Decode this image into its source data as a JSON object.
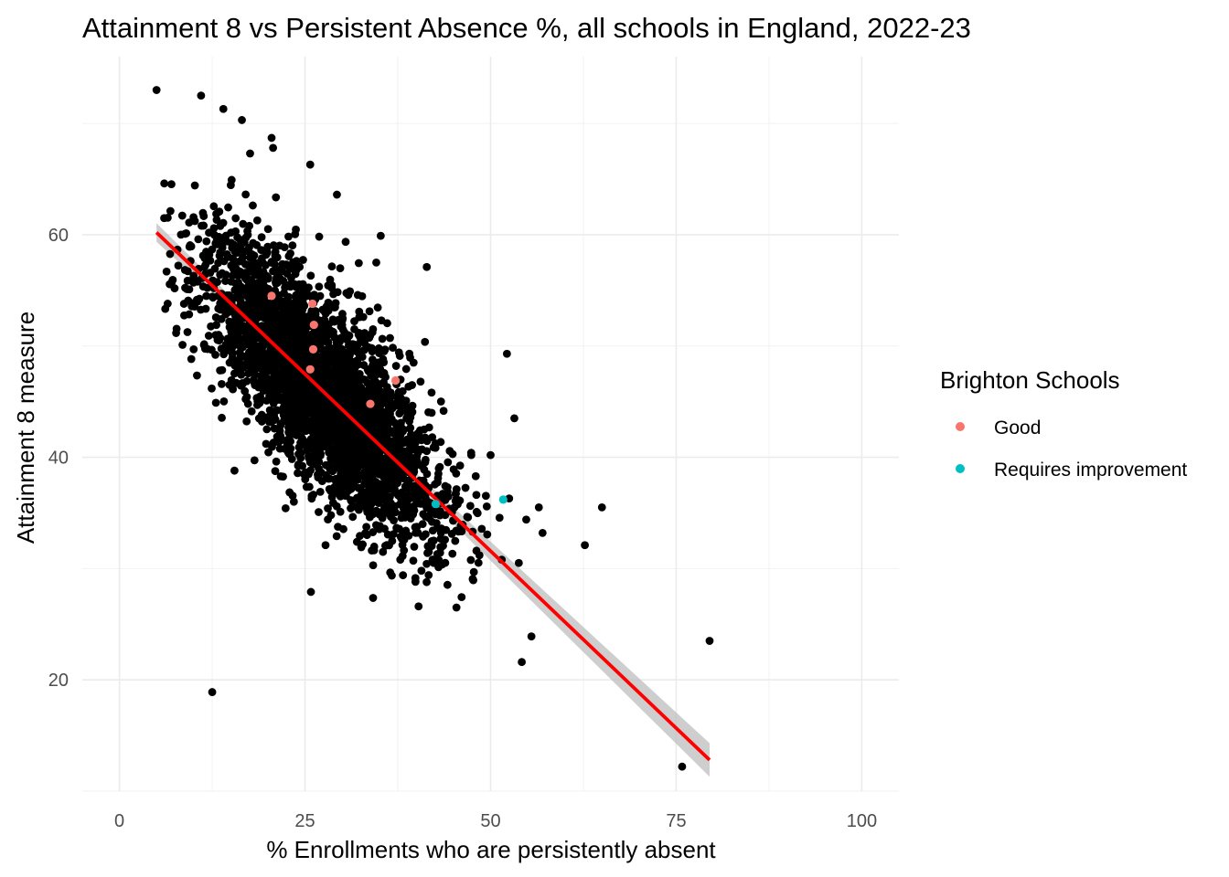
{
  "chart_data": {
    "type": "scatter",
    "title": "Attainment 8 vs Persistent Absence %, all schools in England, 2022-23",
    "xlabel": "% Enrollments who are persistently absent",
    "ylabel": "Attainment 8 measure",
    "xlim": [
      -5,
      105
    ],
    "ylim": [
      10,
      76
    ],
    "x_ticks": [
      0,
      25,
      50,
      75,
      100
    ],
    "x_tick_labels": [
      "0",
      "25",
      "50",
      "75",
      "100"
    ],
    "y_ticks": [
      20,
      40,
      60
    ],
    "y_tick_labels": [
      "20",
      "40",
      "60"
    ],
    "grid": true,
    "legend": {
      "title": "Brighton Schools",
      "position": "right",
      "entries": [
        {
          "label": "Good",
          "color": "#f8766d"
        },
        {
          "label": "Requires improvement",
          "color": "#00bfc4"
        }
      ]
    },
    "trend_line": {
      "method": "linear",
      "color": "#ff0000",
      "ribbon_color": "#bdbdbd",
      "x": [
        5,
        79.5
      ],
      "y": [
        60.2,
        12.8
      ]
    },
    "background_series": {
      "color": "#000000",
      "n_points": 3200,
      "note_points": [
        [
          5,
          73
        ],
        [
          11,
          72.5
        ],
        [
          14,
          71.3
        ],
        [
          16.5,
          70.3
        ],
        [
          20.5,
          68.7
        ],
        [
          20.7,
          67.8
        ],
        [
          17.6,
          67.3
        ],
        [
          25.7,
          66.3
        ],
        [
          29.3,
          63.6
        ],
        [
          35.2,
          59.9
        ],
        [
          41.4,
          57.1
        ],
        [
          34.6,
          57.5
        ],
        [
          52.2,
          49.3
        ],
        [
          53.2,
          43.5
        ],
        [
          56.5,
          35.5
        ],
        [
          65,
          35.5
        ],
        [
          62.7,
          32.1
        ],
        [
          55.5,
          23.9
        ],
        [
          54.2,
          21.6
        ],
        [
          79.5,
          23.5
        ],
        [
          75.8,
          12.2
        ],
        [
          12.5,
          18.9
        ],
        [
          25.8,
          27.9
        ],
        [
          45.4,
          26.5
        ],
        [
          40.3,
          26.6
        ],
        [
          44.2,
          37.3
        ],
        [
          48,
          38.3
        ],
        [
          47.4,
          40.2
        ],
        [
          50,
          40.2
        ],
        [
          52.5,
          36.3
        ],
        [
          54.8,
          34.4
        ],
        [
          57,
          33.2
        ],
        [
          53.8,
          30.5
        ],
        [
          51.5,
          30.8
        ],
        [
          48.5,
          31.2
        ],
        [
          8.5,
          50.1
        ],
        [
          10,
          49.7
        ],
        [
          6.5,
          53.8
        ],
        [
          13,
          44.9
        ],
        [
          15.5,
          38.8
        ],
        [
          23.5,
          36
        ],
        [
          28.5,
          34.8
        ],
        [
          32,
          32.4
        ],
        [
          35.5,
          31.5
        ],
        [
          38.2,
          29.4
        ]
      ]
    },
    "series": [
      {
        "name": "Good",
        "color": "#f8766d",
        "points": [
          {
            "x": 20.5,
            "y": 54.5
          },
          {
            "x": 26.0,
            "y": 53.8
          },
          {
            "x": 26.2,
            "y": 51.9
          },
          {
            "x": 26.1,
            "y": 49.7
          },
          {
            "x": 25.7,
            "y": 47.9
          },
          {
            "x": 37.2,
            "y": 46.9
          },
          {
            "x": 33.8,
            "y": 44.8
          }
        ]
      },
      {
        "name": "Requires improvement",
        "color": "#00bfc4",
        "points": [
          {
            "x": 51.7,
            "y": 36.2
          },
          {
            "x": 42.6,
            "y": 35.8
          }
        ]
      }
    ]
  }
}
